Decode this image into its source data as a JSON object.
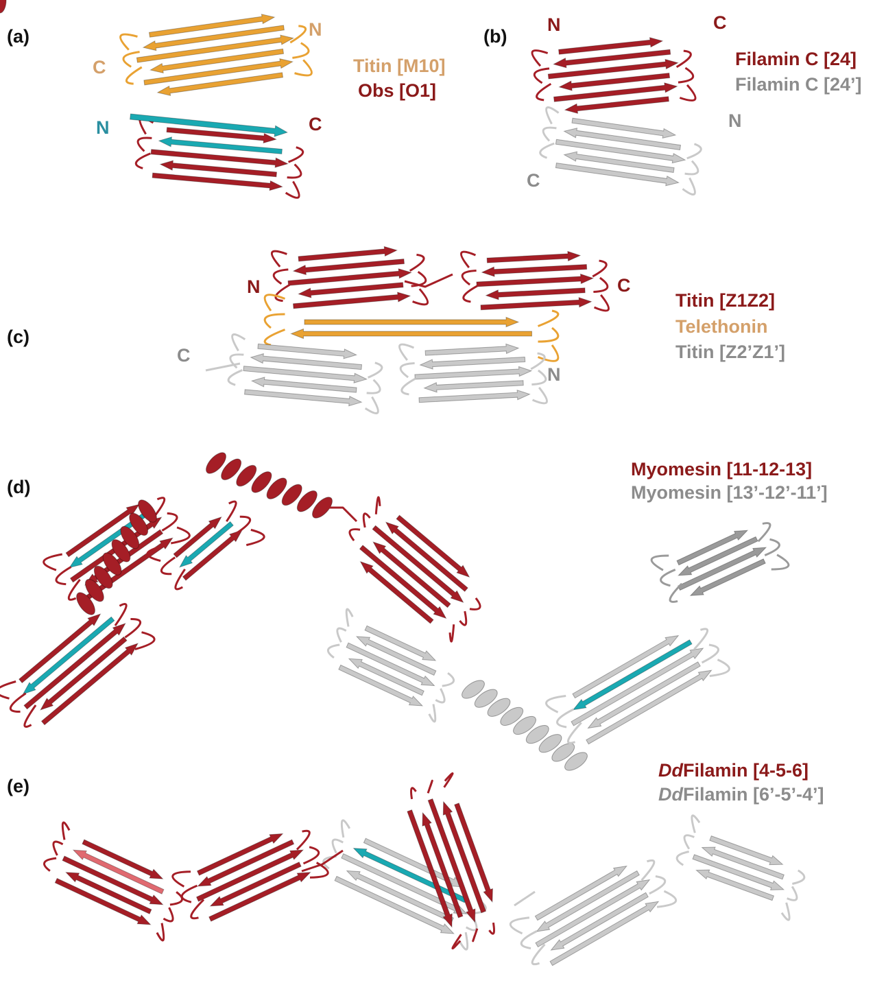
{
  "panels": [
    {
      "label": "(a)",
      "termini": [
        "C",
        "N",
        "N",
        "C"
      ],
      "legend": [
        "Titin [M10]",
        "Obs [O1]"
      ]
    },
    {
      "label": "(b)",
      "termini": [
        "N",
        "C",
        "N",
        "C"
      ],
      "legend": [
        "Filamin C [24]",
        "Filamin C [24’]"
      ]
    },
    {
      "label": "(c)",
      "termini": [
        "N",
        "C",
        "C",
        "N"
      ],
      "legend": [
        "Titin [Z1Z2]",
        "Telethonin",
        "Titin [Z2’Z1’]"
      ]
    },
    {
      "label": "(d)",
      "legend": [
        "Myomesin [11-12-13]",
        "Myomesin [13’-12’-11’]"
      ]
    },
    {
      "label": "(e)",
      "legend": [
        {
          "italic": "Dd",
          "text": "Filamin [4-5-6]"
        },
        {
          "italic": "Dd",
          "text": "Filamin [6’-5’-4’]"
        }
      ]
    }
  ]
}
